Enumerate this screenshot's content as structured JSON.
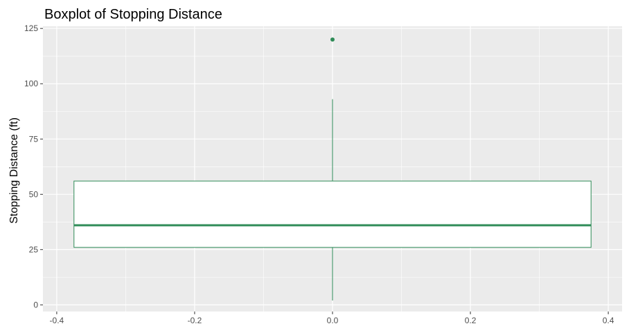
{
  "chart_data": {
    "type": "boxplot",
    "title": "Boxplot of Stopping Distance",
    "xlabel": "",
    "ylabel": "Stopping Distance (ft)",
    "xlim": [
      -0.42,
      0.42
    ],
    "ylim": [
      -3,
      126
    ],
    "x_ticks": [
      -0.4,
      -0.2,
      0.0,
      0.2,
      0.4
    ],
    "x_tick_labels": [
      "-0.4",
      "-0.2",
      "0.0",
      "0.2",
      "0.4"
    ],
    "y_ticks": [
      0,
      25,
      50,
      75,
      100,
      125
    ],
    "y_tick_labels": [
      "0",
      "25",
      "50",
      "75",
      "100",
      "125"
    ],
    "grid": true,
    "box": {
      "x_center": 0.0,
      "x_left": -0.375,
      "x_right": 0.375,
      "whisker_low": 2,
      "q1": 26,
      "median": 36,
      "q3": 56,
      "whisker_high": 93,
      "outliers": [
        120
      ]
    },
    "colors": {
      "panel_background": "#ebebeb",
      "grid": "#ffffff",
      "box_outline": "#2e8b57",
      "box_fill": "#ffffff",
      "outlier": "#2e8b57"
    }
  }
}
